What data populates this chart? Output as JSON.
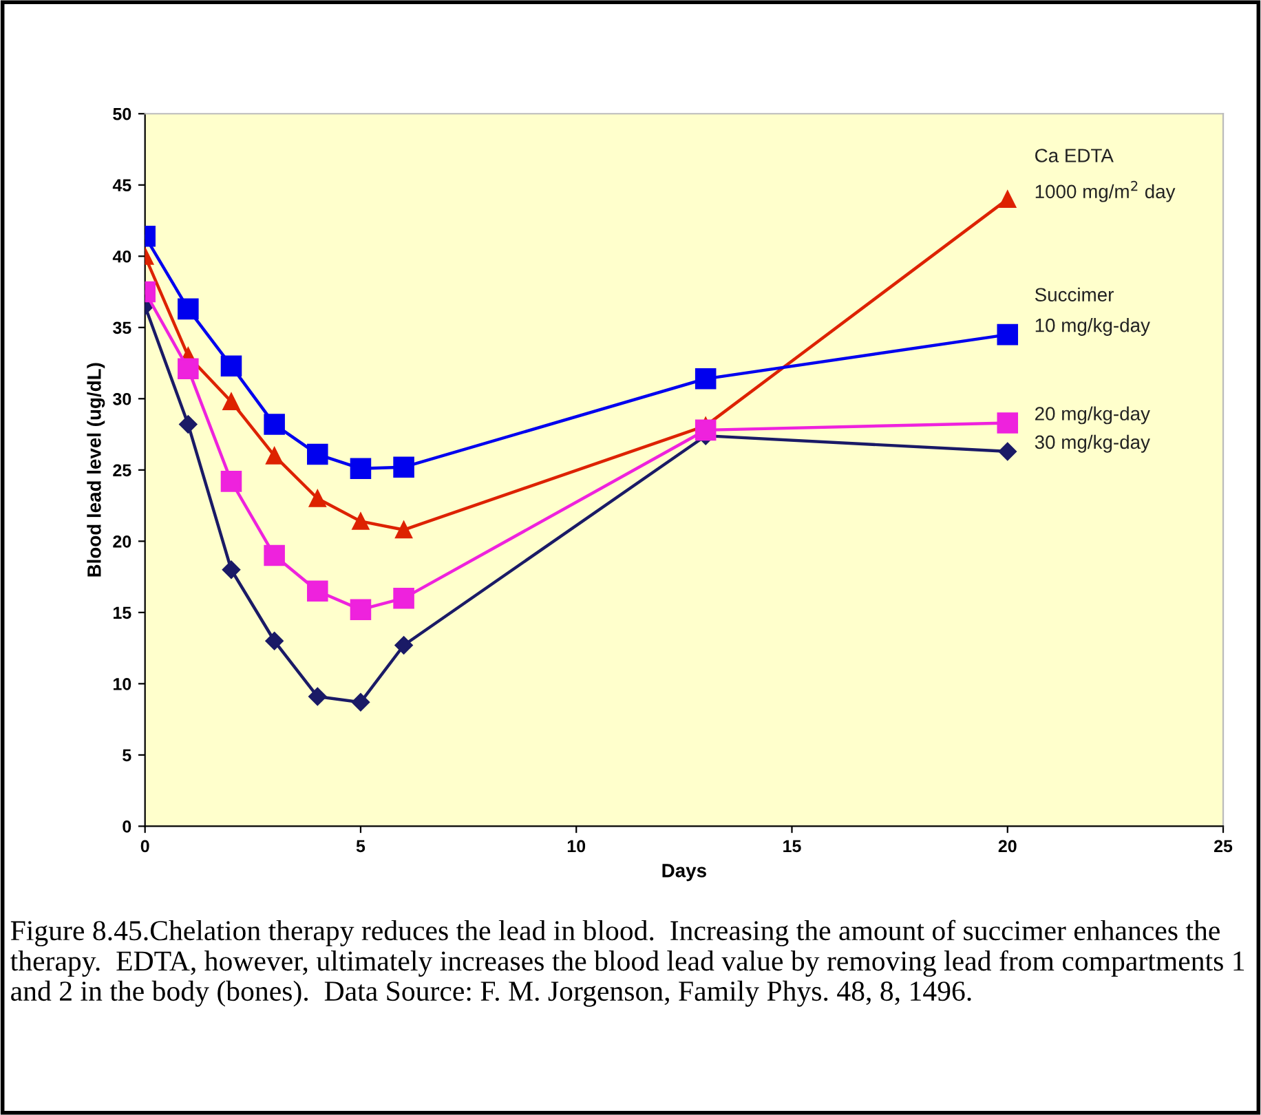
{
  "chart_data": {
    "type": "line",
    "xlabel": "Days",
    "ylabel": "Blood lead level (ug/dL)",
    "x": [
      0,
      1,
      2,
      3,
      4,
      5,
      6,
      13,
      20
    ],
    "series": [
      {
        "name": "1000 mg/m$^{2}$ day",
        "color": "#dd2200",
        "marker": "triangle",
        "values": [
          40,
          33,
          29.8,
          26,
          23,
          21.4,
          20.8,
          28.1,
          44
        ]
      },
      {
        "name": "10 mg/kg-day",
        "color": "#0000ee",
        "marker": "square",
        "values": [
          41.4,
          36.3,
          32.3,
          28.2,
          26.1,
          25.1,
          25.2,
          31.4,
          34.5
        ]
      },
      {
        "name": "20 mg/kg-day",
        "color": "#ee22dd",
        "marker": "square",
        "values": [
          37.5,
          32.1,
          24.2,
          19,
          16.5,
          15.2,
          16,
          27.8,
          28.3
        ]
      },
      {
        "name": "30 mg/kg-day",
        "color": "#1a1a66",
        "marker": "diamond",
        "values": [
          36.5,
          28.2,
          18,
          13,
          9.1,
          8.7,
          12.7,
          27.4,
          26.3
        ]
      }
    ],
    "xlim": [
      0,
      25
    ],
    "xticks": [
      0,
      5,
      10,
      15,
      20,
      25
    ],
    "ylim": [
      0,
      50
    ],
    "yticks": [
      0,
      5,
      10,
      15,
      20,
      25,
      30,
      35,
      40,
      45,
      50
    ],
    "grid": false,
    "legend": false,
    "line_style": "solid",
    "annotations": [
      {
        "text": "Ca EDTA",
        "x": 20,
        "y": 44
      },
      {
        "text": "Succimer",
        "x": 20,
        "y": 34.5
      },
      "Figure 8.45.Chelation therapy reduces the lead in blood.  Increasing the amount of succimer enhances the therapy.  EDTA, however, ultimately increases the blood lead value by removing lead from compartments 1 and 2 in the body (bones).  Data Source: F. M. Jorgenson, Family Phys. 48, 8, 1496."
    ]
  }
}
